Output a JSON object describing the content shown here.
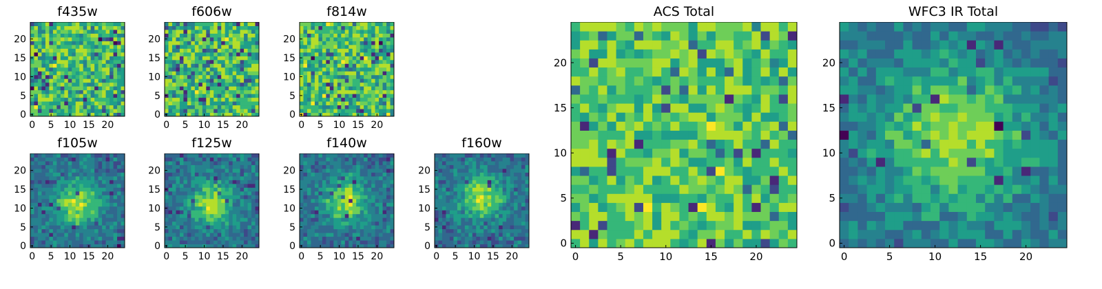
{
  "chart_data": [
    {
      "type": "heatmap",
      "title": "f435w",
      "grid": false,
      "colormap": "viridis",
      "xlim": [
        -0.5,
        24.5
      ],
      "ylim": [
        -0.5,
        24.5
      ],
      "xticks": [
        0,
        5,
        10,
        15,
        20
      ],
      "yticks": [
        0,
        5,
        10,
        15,
        20
      ],
      "xtick_labels": [
        "0",
        "5",
        "10",
        "15",
        "20"
      ],
      "ytick_labels": [
        "0",
        "5",
        "10",
        "15",
        "20"
      ],
      "n": 25,
      "pattern": "noise",
      "seed": 11
    },
    {
      "type": "heatmap",
      "title": "f606w",
      "grid": false,
      "colormap": "viridis",
      "xlim": [
        -0.5,
        24.5
      ],
      "ylim": [
        -0.5,
        24.5
      ],
      "xticks": [
        0,
        5,
        10,
        15,
        20
      ],
      "yticks": [
        0,
        5,
        10,
        15,
        20
      ],
      "xtick_labels": [
        "0",
        "5",
        "10",
        "15",
        "20"
      ],
      "ytick_labels": [
        "0",
        "5",
        "10",
        "15",
        "20"
      ],
      "n": 25,
      "pattern": "noise",
      "seed": 23
    },
    {
      "type": "heatmap",
      "title": "f814w",
      "grid": false,
      "colormap": "viridis",
      "xlim": [
        -0.5,
        24.5
      ],
      "ylim": [
        -0.5,
        24.5
      ],
      "xticks": [
        0,
        5,
        10,
        15,
        20
      ],
      "yticks": [
        0,
        5,
        10,
        15,
        20
      ],
      "xtick_labels": [
        "0",
        "5",
        "10",
        "15",
        "20"
      ],
      "ytick_labels": [
        "0",
        "5",
        "10",
        "15",
        "20"
      ],
      "n": 25,
      "pattern": "noise",
      "seed": 37
    },
    {
      "type": "heatmap",
      "title": "f105w",
      "grid": false,
      "colormap": "viridis",
      "xlim": [
        -0.5,
        24.5
      ],
      "ylim": [
        -0.5,
        24.5
      ],
      "xticks": [
        0,
        5,
        10,
        15,
        20
      ],
      "yticks": [
        0,
        5,
        10,
        15,
        20
      ],
      "xtick_labels": [
        "0",
        "5",
        "10",
        "15",
        "20"
      ],
      "ytick_labels": [
        "0",
        "5",
        "10",
        "15",
        "20"
      ],
      "n": 25,
      "pattern": "source",
      "center": [
        12,
        11
      ],
      "seed": 41
    },
    {
      "type": "heatmap",
      "title": "f125w",
      "grid": false,
      "colormap": "viridis",
      "xlim": [
        -0.5,
        24.5
      ],
      "ylim": [
        -0.5,
        24.5
      ],
      "xticks": [
        0,
        5,
        10,
        15,
        20
      ],
      "yticks": [
        0,
        5,
        10,
        15,
        20
      ],
      "xtick_labels": [
        "0",
        "5",
        "10",
        "15",
        "20"
      ],
      "ytick_labels": [
        "0",
        "5",
        "10",
        "15",
        "20"
      ],
      "n": 25,
      "pattern": "source",
      "center": [
        12,
        11
      ],
      "seed": 53
    },
    {
      "type": "heatmap",
      "title": "f140w",
      "grid": false,
      "colormap": "viridis",
      "xlim": [
        -0.5,
        24.5
      ],
      "ylim": [
        -0.5,
        24.5
      ],
      "xticks": [
        0,
        5,
        10,
        15,
        20
      ],
      "yticks": [
        0,
        5,
        10,
        15,
        20
      ],
      "xtick_labels": [
        "0",
        "5",
        "10",
        "15",
        "20"
      ],
      "ytick_labels": [
        "0",
        "5",
        "10",
        "15",
        "20"
      ],
      "n": 25,
      "pattern": "source",
      "center": [
        12,
        12
      ],
      "seed": 67
    },
    {
      "type": "heatmap",
      "title": "f160w",
      "grid": false,
      "colormap": "viridis",
      "xlim": [
        -0.5,
        24.5
      ],
      "ylim": [
        -0.5,
        24.5
      ],
      "xticks": [
        0,
        5,
        10,
        15,
        20
      ],
      "yticks": [
        0,
        5,
        10,
        15,
        20
      ],
      "xtick_labels": [
        "0",
        "5",
        "10",
        "15",
        "20"
      ],
      "ytick_labels": [
        "0",
        "5",
        "10",
        "15",
        "20"
      ],
      "n": 25,
      "pattern": "source",
      "center": [
        12,
        13
      ],
      "seed": 79
    },
    {
      "type": "heatmap",
      "title": "ACS Total",
      "grid": false,
      "colormap": "viridis",
      "xlim": [
        -0.5,
        24.5
      ],
      "ylim": [
        -0.5,
        24.5
      ],
      "xticks": [
        0,
        5,
        10,
        15,
        20
      ],
      "yticks": [
        0,
        5,
        10,
        15,
        20
      ],
      "xtick_labels": [
        "0",
        "5",
        "10",
        "15",
        "20"
      ],
      "ytick_labels": [
        "0",
        "5",
        "10",
        "15",
        "20"
      ],
      "n": 25,
      "pattern": "bright-noise",
      "seed": 89
    },
    {
      "type": "heatmap",
      "title": "WFC3 IR Total",
      "grid": false,
      "colormap": "viridis",
      "xlim": [
        -0.5,
        24.5
      ],
      "ylim": [
        -0.5,
        24.5
      ],
      "xticks": [
        0,
        5,
        10,
        15,
        20
      ],
      "yticks": [
        0,
        5,
        10,
        15,
        20
      ],
      "xtick_labels": [
        "0",
        "5",
        "10",
        "15",
        "20"
      ],
      "ytick_labels": [
        "0",
        "5",
        "10",
        "15",
        "20"
      ],
      "n": 25,
      "pattern": "source-wide",
      "center": [
        12,
        12
      ],
      "seed": 97
    }
  ],
  "colors": {
    "viridis": [
      "#440154",
      "#482878",
      "#3e4989",
      "#31688e",
      "#26828e",
      "#1f9e89",
      "#35b779",
      "#6ece58",
      "#b5de2b",
      "#fde725"
    ],
    "frame": "#000000"
  }
}
